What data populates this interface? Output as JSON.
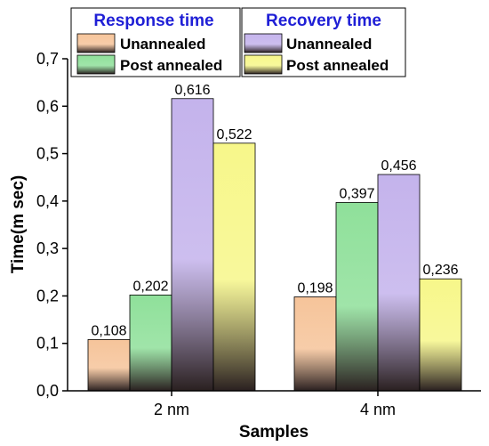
{
  "chart_data": {
    "type": "bar",
    "categories": [
      "2 nm",
      "4 nm"
    ],
    "xlabel": "Samples",
    "ylabel": "Time(m sec)",
    "ylim": [
      0,
      0.7
    ],
    "yticks": [
      "0,0",
      "0,1",
      "0,2",
      "0,3",
      "0,4",
      "0,5",
      "0,6",
      "0,7"
    ],
    "grid": false,
    "series": [
      {
        "name": "Unannealed",
        "group": "Response time",
        "values": [
          0.108,
          0.198
        ],
        "labels": [
          "0,108",
          "0,198"
        ],
        "color": "#f6c49a"
      },
      {
        "name": "Post annealed",
        "group": "Response time",
        "values": [
          0.202,
          0.397
        ],
        "labels": [
          "0,202",
          "0,397"
        ],
        "color": "#8fe09a"
      },
      {
        "name": "Unannealed",
        "group": "Recovery time",
        "values": [
          0.616,
          0.456
        ],
        "labels": [
          "0,616",
          "0,456"
        ],
        "color": "#c4b3ec"
      },
      {
        "name": "Post annealed",
        "group": "Recovery time",
        "values": [
          0.522,
          0.236
        ],
        "labels": [
          "0,522",
          "0,236"
        ],
        "color": "#f7f78a"
      }
    ],
    "legend": {
      "placement": "top",
      "groups": [
        {
          "title": "Response time",
          "series_index": [
            0,
            1
          ]
        },
        {
          "title": "Recovery time",
          "series_index": [
            2,
            3
          ]
        }
      ]
    }
  }
}
